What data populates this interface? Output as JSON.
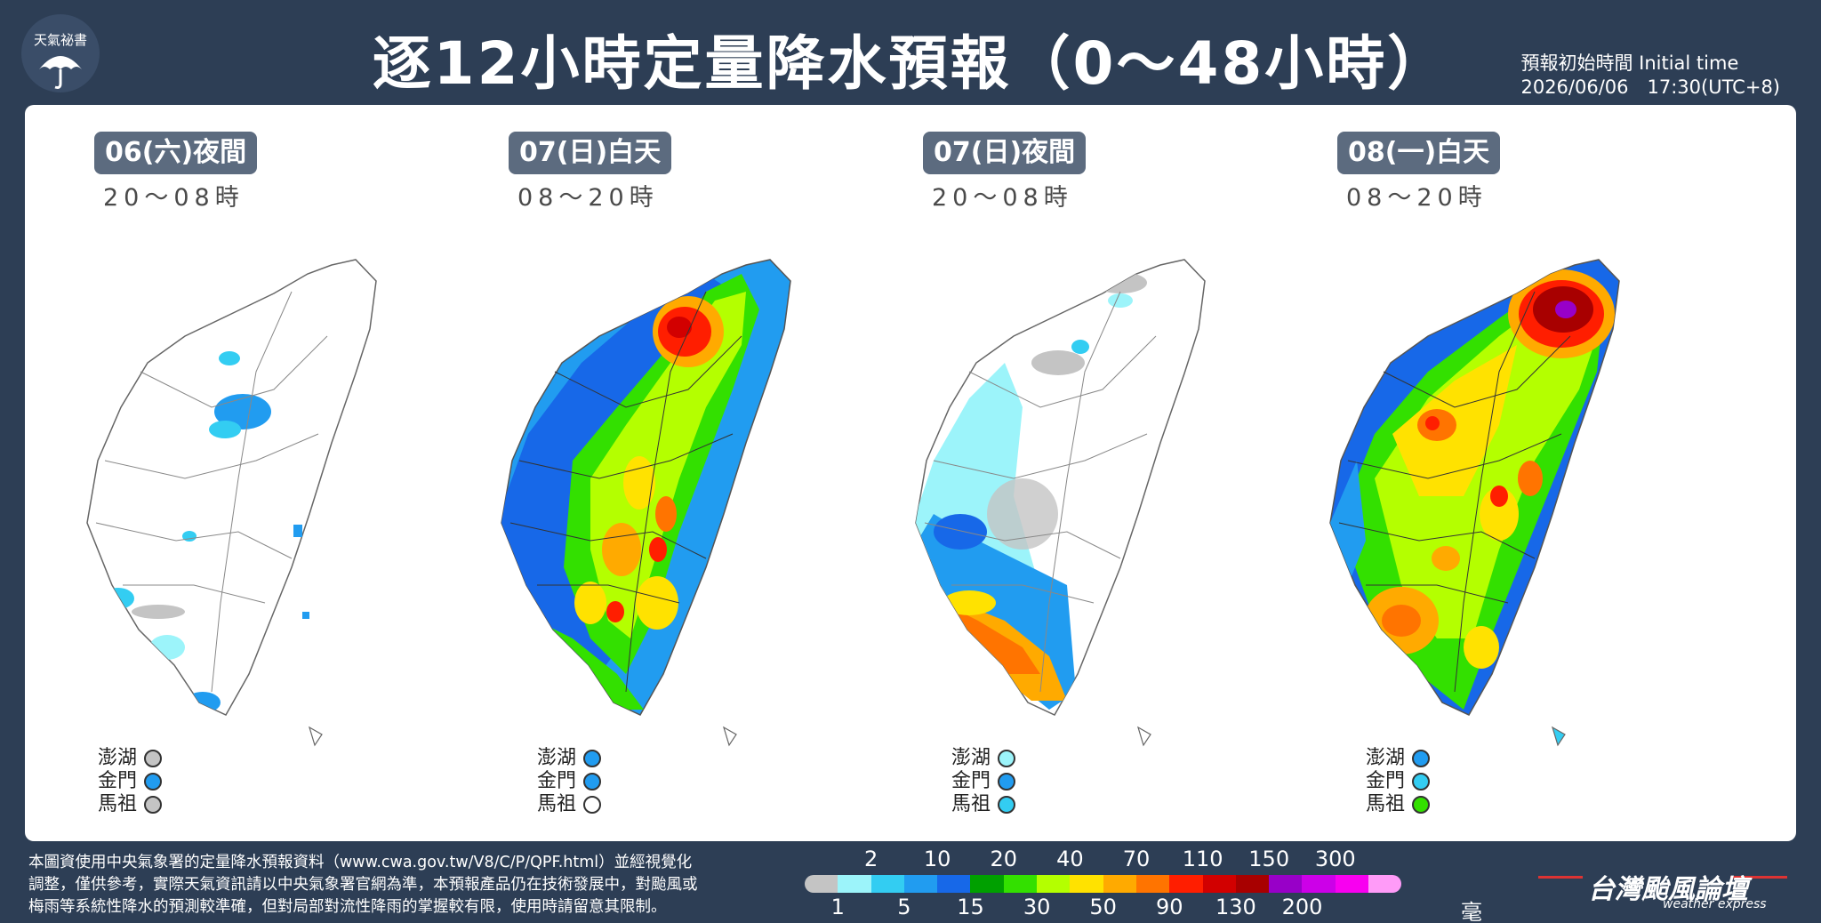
{
  "header": {
    "logo_text": "天氣祕書",
    "title": "逐12小時定量降水預報（0～48小時）",
    "initial_time_label": "預報初始時間 Initial time",
    "initial_time_value": "2026/06/06　17:30(UTC+8)"
  },
  "colors": {
    "background": "#2d3e55",
    "panel_label_bg": "#5c6b7f",
    "scale": [
      "#c4c4c4",
      "#9cf4fa",
      "#33cdf2",
      "#219cf0",
      "#1768e8",
      "#00a000",
      "#33e000",
      "#b4ff00",
      "#ffe200",
      "#ffaa00",
      "#ff7400",
      "#ff1e00",
      "#d20000",
      "#a80000",
      "#9800c8",
      "#cc00e8",
      "#f800f0",
      "#ff9bf8"
    ]
  },
  "panels": [
    {
      "label": "06(六)夜間",
      "time": "20～08時",
      "islands": [
        {
          "name": "澎湖",
          "color": "#c4c4c4"
        },
        {
          "name": "金門",
          "color": "#219cf0"
        },
        {
          "name": "馬祖",
          "color": "#c4c4c4"
        }
      ]
    },
    {
      "label": "07(日)白天",
      "time": "08～20時",
      "islands": [
        {
          "name": "澎湖",
          "color": "#219cf0"
        },
        {
          "name": "金門",
          "color": "#219cf0"
        },
        {
          "name": "馬祖",
          "color": "#ffffff"
        }
      ]
    },
    {
      "label": "07(日)夜間",
      "time": "20～08時",
      "islands": [
        {
          "name": "澎湖",
          "color": "#9cf4fa"
        },
        {
          "name": "金門",
          "color": "#219cf0"
        },
        {
          "name": "馬祖",
          "color": "#33cdf2"
        }
      ]
    },
    {
      "label": "08(一)白天",
      "time": "08～20時",
      "islands": [
        {
          "name": "澎湖",
          "color": "#219cf0"
        },
        {
          "name": "金門",
          "color": "#33cdf2"
        },
        {
          "name": "馬祖",
          "color": "#33e000"
        }
      ]
    }
  ],
  "footer": {
    "note_line1": "本圖資使用中央氣象署的定量降水預報資料（www.cwa.gov.tw/V8/C/P/QPF.html）並經視覺化",
    "note_line2": "調整，僅供參考，實際天氣資訊請以中央氣象署官網為準，本預報產品仍在技術發展中，對颱風或",
    "note_line3": "梅雨等系統性降水的預測較準確，但對局部對流性降雨的掌握較有限，使用時請留意其限制。",
    "legend_top": [
      "2",
      "10",
      "20",
      "40",
      "70",
      "110",
      "150",
      "300"
    ],
    "legend_bottom": [
      "1",
      "5",
      "15",
      "30",
      "50",
      "90",
      "130",
      "200"
    ],
    "unit": "毫米",
    "brand_name": "台灣颱風論壇",
    "brand_sub": "weather express"
  }
}
